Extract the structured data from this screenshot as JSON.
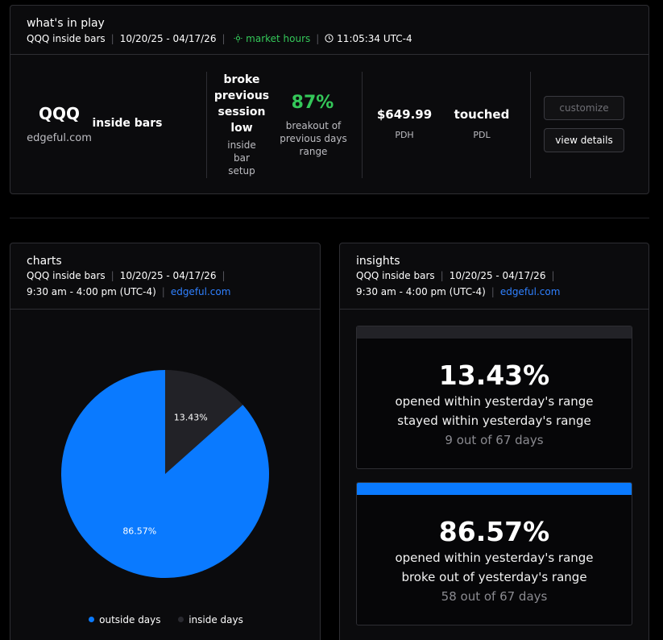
{
  "colors": {
    "accent_blue": "#0a7aff",
    "dark_slice": "#222227",
    "green": "#34c759",
    "link_blue": "#2f80ff"
  },
  "top": {
    "title": "what's in play",
    "meta": {
      "ticker": "QQQ inside bars",
      "range": "10/20/25 - 04/17/26",
      "market": "market hours",
      "time": "11:05:34 UTC-4"
    },
    "ticker": "QQQ",
    "site": "edgeful.com",
    "report": "inside bars",
    "setup_main": "broke previous session low",
    "setup_sub": "inside bar setup",
    "pct": "87%",
    "pct_label": "breakout of previous days range",
    "pdh_value": "$649.99",
    "pdh_label": "PDH",
    "pdl_value": "touched",
    "pdl_label": "PDL",
    "customize": "customize",
    "view_details": "view details"
  },
  "charts": {
    "title": "charts",
    "meta": {
      "ticker": "QQQ inside bars",
      "range": "10/20/25 - 04/17/26",
      "hours": "9:30 am - 4:00 pm (UTC-4)",
      "site": "edgeful.com"
    },
    "legend": [
      {
        "label": "outside days",
        "color": "#0a7aff"
      },
      {
        "label": "inside days",
        "color": "#222227"
      }
    ]
  },
  "chart_data": {
    "type": "pie",
    "categories": [
      "outside days",
      "inside days"
    ],
    "values": [
      86.57,
      13.43
    ],
    "labels": [
      "86.57%",
      "13.43%"
    ],
    "colors": [
      "#0a7aff",
      "#222227"
    ],
    "legend_position": "bottom"
  },
  "insights": {
    "title": "insights",
    "meta": {
      "ticker": "QQQ inside bars",
      "range": "10/20/25 - 04/17/26",
      "hours": "9:30 am - 4:00 pm (UTC-4)",
      "site": "edgeful.com"
    },
    "cards": [
      {
        "pct": "13.43%",
        "line1": "opened within yesterday's range",
        "line2": "stayed within yesterday's range",
        "count": "9 out of 67 days",
        "bar_color": "#222227"
      },
      {
        "pct": "86.57%",
        "line1": "opened within yesterday's range",
        "line2": "broke out of yesterday's range",
        "count": "58 out of 67 days",
        "bar_color": "#0a7aff"
      }
    ]
  }
}
